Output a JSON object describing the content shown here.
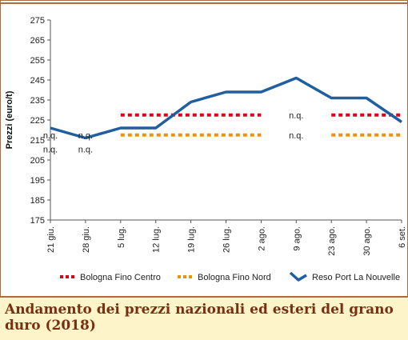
{
  "caption": {
    "title": "Andamento dei prezzi nazionali ed esteri del grano duro (2018)"
  },
  "chart_data": {
    "type": "line",
    "ylabel": "Prezzi (euro/t)",
    "xlabel": "",
    "ylim": [
      175,
      275
    ],
    "yticks": [
      175,
      185,
      195,
      205,
      215,
      225,
      235,
      245,
      255,
      265,
      275
    ],
    "categories": [
      "21 giu.",
      "28 giu.",
      "5 lug.",
      "12 lug.",
      "19 lug.",
      "26 lug.",
      "2 ago.",
      "9 ago.",
      "23 ago.",
      "30 ago.",
      "6 set."
    ],
    "legend_position": "bottom",
    "series": [
      {
        "name": "Bologna Fino Centro",
        "style": "dotted",
        "color": "#e2001a",
        "values": [
          null,
          null,
          227.5,
          227.5,
          227.5,
          227.5,
          227.5,
          null,
          227.5,
          227.5,
          227.5
        ]
      },
      {
        "name": "Bologna Fino Nord",
        "style": "dotted",
        "color": "#f39200",
        "values": [
          null,
          null,
          217.5,
          217.5,
          217.5,
          217.5,
          217.5,
          null,
          217.5,
          217.5,
          217.5
        ]
      },
      {
        "name": "Reso Port La Nouvelle",
        "style": "solid",
        "color": "#1f5fa0",
        "values": [
          221,
          216,
          221,
          221,
          234,
          239,
          239,
          246,
          236,
          236,
          224
        ]
      }
    ],
    "annotations": [
      {
        "text": "n.q.",
        "category_index": 0,
        "y": 217.5
      },
      {
        "text": "n.q.",
        "category_index": 0,
        "y": 210.5
      },
      {
        "text": "n.q.",
        "category_index": 1,
        "y": 217.5
      },
      {
        "text": "n.q.",
        "category_index": 1,
        "y": 210.5
      },
      {
        "text": "n.q.",
        "category_index": 7,
        "y": 227.5
      },
      {
        "text": "n.q.",
        "category_index": 7,
        "y": 217.5
      }
    ],
    "grid": false
  }
}
